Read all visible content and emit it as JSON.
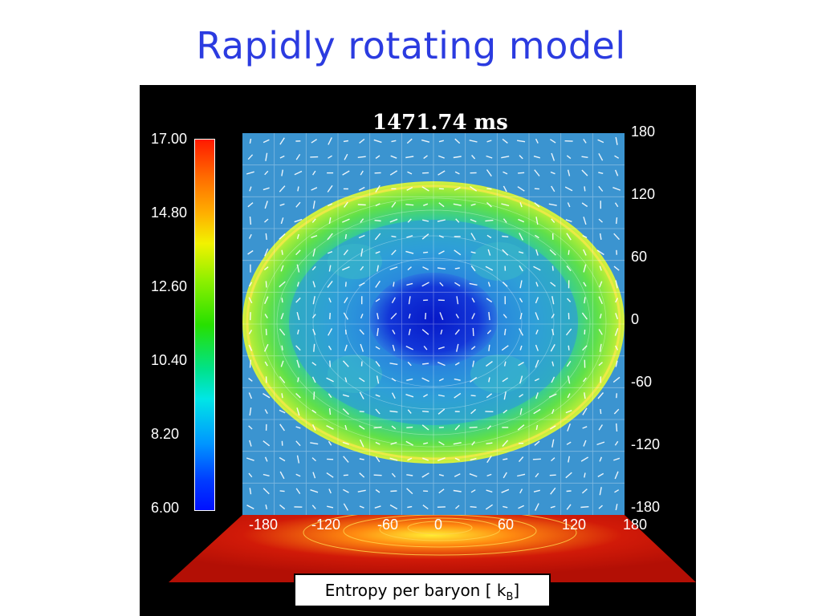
{
  "slide": {
    "title": "Rapidly rotating model"
  },
  "figure": {
    "timestamp": "1471.74 ms",
    "colorbar": {
      "ticks": [
        "17.00",
        "14.80",
        "12.60",
        "10.40",
        "8.20",
        "6.00"
      ]
    },
    "x_axis": {
      "ticks": [
        "-180",
        "-120",
        "-60",
        "0",
        "60",
        "120",
        "180"
      ]
    },
    "y_axis": {
      "ticks": [
        "180",
        "120",
        "60",
        "0",
        "-60",
        "-120",
        "-180"
      ]
    },
    "caption": {
      "main": "Entropy per baryon [ k",
      "sub": "B",
      "end": "]"
    },
    "colors": {
      "background": "#000000",
      "plot_background": "#3b94d0",
      "floor": "#c41408",
      "title": "#2b3be0"
    }
  }
}
